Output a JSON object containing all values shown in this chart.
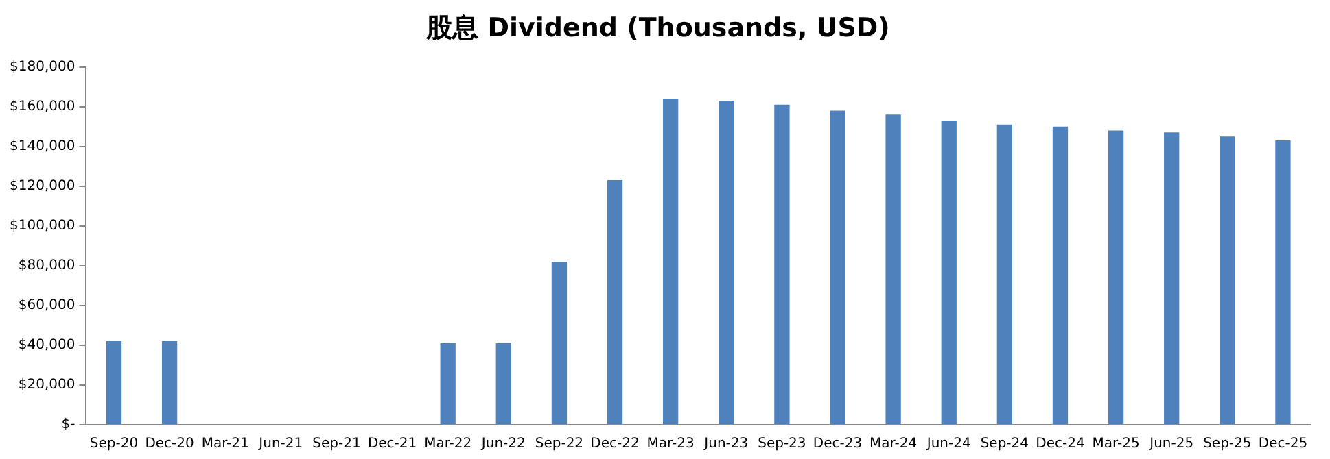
{
  "chart_data": {
    "type": "bar",
    "title": "股息 Dividend (Thousands, USD)",
    "categories": [
      "Sep-20",
      "Dec-20",
      "Mar-21",
      "Jun-21",
      "Sep-21",
      "Dec-21",
      "Mar-22",
      "Jun-22",
      "Sep-22",
      "Dec-22",
      "Mar-23",
      "Jun-23",
      "Sep-23",
      "Dec-23",
      "Mar-24",
      "Jun-24",
      "Sep-24",
      "Dec-24",
      "Mar-25",
      "Jun-25",
      "Sep-25",
      "Dec-25"
    ],
    "values": [
      42000,
      42000,
      0,
      0,
      0,
      0,
      41000,
      41000,
      82000,
      123000,
      164000,
      163000,
      161000,
      158000,
      156000,
      153000,
      151000,
      150000,
      148000,
      147000,
      145000,
      143000
    ],
    "color": "#4f81bd",
    "ylim": [
      0,
      180000
    ],
    "yticks": [
      {
        "value": 0,
        "label": "$-"
      },
      {
        "value": 20000,
        "label": "$20,000"
      },
      {
        "value": 40000,
        "label": "$40,000"
      },
      {
        "value": 60000,
        "label": "$60,000"
      },
      {
        "value": 80000,
        "label": "$80,000"
      },
      {
        "value": 100000,
        "label": "$100,000"
      },
      {
        "value": 120000,
        "label": "$120,000"
      },
      {
        "value": 140000,
        "label": "$140,000"
      },
      {
        "value": 160000,
        "label": "$160,000"
      },
      {
        "value": 180000,
        "label": "$180,000"
      }
    ],
    "grid": false,
    "legend": false
  }
}
